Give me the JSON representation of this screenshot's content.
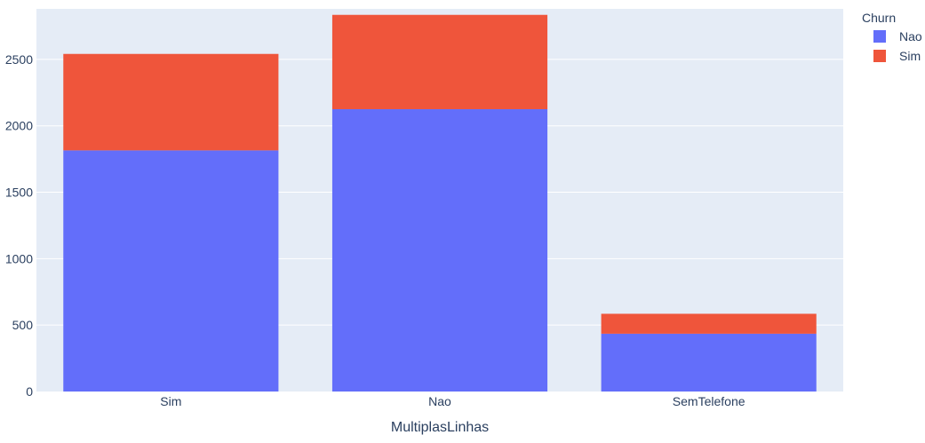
{
  "chart_data": {
    "type": "bar",
    "barmode": "stack",
    "categories": [
      "Sim",
      "Nao",
      "SemTelefone"
    ],
    "series": [
      {
        "name": "Nao",
        "values": [
          1815,
          2125,
          435
        ],
        "color": "#636efa"
      },
      {
        "name": "Sim",
        "values": [
          726,
          710,
          150
        ],
        "color": "#ef553b"
      }
    ],
    "title": "",
    "xlabel": "MultiplasLinhas",
    "ylabel": "",
    "ylim": [
      0,
      2880
    ],
    "yticks": [
      0,
      500,
      1000,
      1500,
      2000,
      2500
    ],
    "ytick_labels": [
      "0",
      "500",
      "1000",
      "1500",
      "2000",
      "2500"
    ],
    "grid": true,
    "plot_background": "#e5ecf6",
    "legend": {
      "title": "Churn",
      "position": "top-right",
      "entries": [
        "Nao",
        "Sim"
      ]
    }
  }
}
